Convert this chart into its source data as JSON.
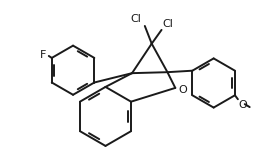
{
  "bg_color": "#ffffff",
  "line_color": "#1a1a1a",
  "lw": 1.4,
  "fs": 8.0,
  "figsize": [
    2.69,
    1.65
  ],
  "dpi": 100,
  "xlim": [
    0,
    2.69
  ],
  "ylim": [
    0,
    1.65
  ]
}
